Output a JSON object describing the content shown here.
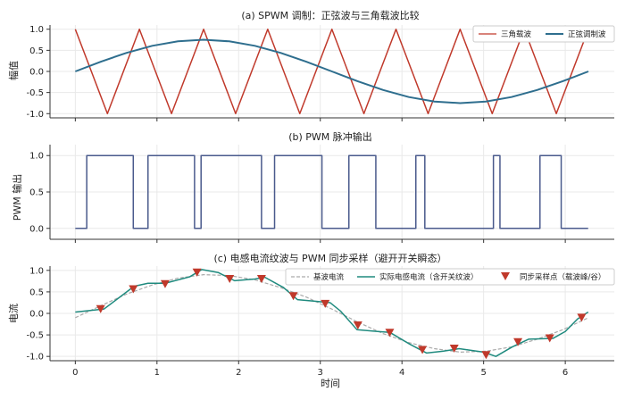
{
  "figure": {
    "xlabel": "时间"
  },
  "chart_data": [
    {
      "type": "line",
      "title": "(a) SPWM 调制：正弦波与三角载波比较",
      "ylabel": "幅值",
      "xlim": [
        -0.31,
        6.6
      ],
      "ylim": [
        -1.1,
        1.1
      ],
      "yticks": [
        -1.0,
        -0.5,
        0.0,
        0.5,
        1.0
      ],
      "ytick_labels": [
        "-1.0",
        "-0.5",
        "0.0",
        "0.5",
        "1.0"
      ],
      "grid": true,
      "legend": "top-right",
      "series": [
        {
          "name": "三角载波",
          "color": "#c0392b",
          "points": [
            [
              0,
              1
            ],
            [
              0.393,
              -1
            ],
            [
              0.785,
              1
            ],
            [
              1.178,
              -1
            ],
            [
              1.571,
              1
            ],
            [
              1.963,
              -1
            ],
            [
              2.356,
              1
            ],
            [
              2.749,
              -1
            ],
            [
              3.142,
              1
            ],
            [
              3.534,
              -1
            ],
            [
              3.927,
              1
            ],
            [
              4.32,
              -1
            ],
            [
              4.712,
              1
            ],
            [
              5.105,
              -1
            ],
            [
              5.498,
              1
            ],
            [
              5.89,
              -1
            ],
            [
              6.283,
              1
            ]
          ]
        },
        {
          "name": "正弦调制波",
          "color": "#2e6e8e",
          "points": [
            [
              0,
              0
            ],
            [
              0.314,
              0.232
            ],
            [
              0.628,
              0.441
            ],
            [
              0.942,
              0.607
            ],
            [
              1.257,
              0.713
            ],
            [
              1.571,
              0.75
            ],
            [
              1.885,
              0.713
            ],
            [
              2.199,
              0.607
            ],
            [
              2.513,
              0.441
            ],
            [
              2.827,
              0.232
            ],
            [
              3.142,
              0
            ],
            [
              3.456,
              -0.232
            ],
            [
              3.77,
              -0.441
            ],
            [
              4.084,
              -0.607
            ],
            [
              4.398,
              -0.713
            ],
            [
              4.712,
              -0.75
            ],
            [
              5.027,
              -0.713
            ],
            [
              5.341,
              -0.607
            ],
            [
              5.655,
              -0.441
            ],
            [
              5.969,
              -0.232
            ],
            [
              6.283,
              0
            ]
          ]
        }
      ]
    },
    {
      "type": "line",
      "title": "(b) PWM 脉冲输出",
      "ylabel": "PWM 输出",
      "xlim": [
        -0.31,
        6.6
      ],
      "ylim": [
        -0.15,
        1.15
      ],
      "yticks": [
        0,
        0.5,
        1.0
      ],
      "ytick_labels": [
        "0.0",
        "0.5",
        "1.0"
      ],
      "grid": true,
      "series": [
        {
          "name": "PWM",
          "color": "#4a5a8c",
          "step": true,
          "points": [
            [
              0,
              0
            ],
            [
              0.14,
              1
            ],
            [
              0.71,
              0
            ],
            [
              0.89,
              1
            ],
            [
              1.46,
              0
            ],
            [
              1.54,
              1
            ],
            [
              2.28,
              0
            ],
            [
              2.44,
              1
            ],
            [
              3.02,
              0
            ],
            [
              3.35,
              1
            ],
            [
              3.68,
              0
            ],
            [
              4.17,
              1
            ],
            [
              4.28,
              0
            ],
            [
              5.12,
              1
            ],
            [
              5.2,
              0
            ],
            [
              5.69,
              1
            ],
            [
              5.95,
              0
            ],
            [
              6.28,
              0
            ]
          ]
        }
      ]
    },
    {
      "type": "line",
      "title": "(c) 电感电流纹波与 PWM 同步采样（避开开关瞬态）",
      "ylabel": "电流",
      "xlim": [
        -0.31,
        6.6
      ],
      "ylim": [
        -1.1,
        1.1
      ],
      "yticks": [
        -1.0,
        -0.5,
        0.0,
        0.5,
        1.0
      ],
      "ytick_labels": [
        "-1.0",
        "-0.5",
        "0.0",
        "0.5",
        "1.0"
      ],
      "xticks": [
        0,
        1,
        2,
        3,
        4,
        5,
        6
      ],
      "xtick_labels": [
        "0",
        "1",
        "2",
        "3",
        "4",
        "5",
        "6"
      ],
      "grid": true,
      "legend": "top-right",
      "series": [
        {
          "name": "基波电流",
          "color": "#aaaaaa",
          "dashed": true,
          "points": [
            [
              0,
              -0.1
            ],
            [
              0.314,
              0.18
            ],
            [
              0.628,
              0.45
            ],
            [
              0.942,
              0.66
            ],
            [
              1.257,
              0.82
            ],
            [
              1.571,
              0.9
            ],
            [
              1.885,
              0.88
            ],
            [
              2.199,
              0.78
            ],
            [
              2.513,
              0.6
            ],
            [
              2.827,
              0.38
            ],
            [
              3.142,
              0.1
            ],
            [
              3.456,
              -0.2
            ],
            [
              3.77,
              -0.47
            ],
            [
              4.084,
              -0.68
            ],
            [
              4.398,
              -0.82
            ],
            [
              4.712,
              -0.9
            ],
            [
              5.027,
              -0.88
            ],
            [
              5.341,
              -0.78
            ],
            [
              5.655,
              -0.6
            ],
            [
              5.969,
              -0.38
            ],
            [
              6.283,
              -0.1
            ]
          ]
        },
        {
          "name": "实际电感电流（含开关纹波）",
          "color": "#1f8a7e",
          "points": [
            [
              0,
              0.03
            ],
            [
              0.35,
              0.1
            ],
            [
              0.72,
              0.63
            ],
            [
              0.89,
              0.7
            ],
            [
              1.1,
              0.7
            ],
            [
              1.4,
              0.85
            ],
            [
              1.55,
              1.02
            ],
            [
              1.75,
              0.95
            ],
            [
              1.95,
              0.76
            ],
            [
              2.2,
              0.8
            ],
            [
              2.32,
              0.84
            ],
            [
              2.55,
              0.6
            ],
            [
              2.72,
              0.32
            ],
            [
              2.95,
              0.28
            ],
            [
              3.12,
              0.25
            ],
            [
              3.25,
              0.05
            ],
            [
              3.45,
              -0.38
            ],
            [
              3.7,
              -0.42
            ],
            [
              3.85,
              -0.44
            ],
            [
              4.1,
              -0.72
            ],
            [
              4.3,
              -0.92
            ],
            [
              4.5,
              -0.88
            ],
            [
              4.7,
              -0.82
            ],
            [
              5.0,
              -0.9
            ],
            [
              5.15,
              -1.0
            ],
            [
              5.35,
              -0.78
            ],
            [
              5.55,
              -0.6
            ],
            [
              5.85,
              -0.58
            ],
            [
              6.0,
              -0.42
            ],
            [
              6.15,
              -0.13
            ],
            [
              6.28,
              0.03
            ]
          ]
        },
        {
          "name": "同步采样点（载波峰/谷）",
          "color": "#c0392b",
          "marker": "triangle-down",
          "scatter": true,
          "points": [
            [
              0.31,
              0.11
            ],
            [
              0.71,
              0.57
            ],
            [
              1.1,
              0.69
            ],
            [
              1.49,
              0.96
            ],
            [
              1.89,
              0.81
            ],
            [
              2.28,
              0.81
            ],
            [
              2.67,
              0.41
            ],
            [
              3.06,
              0.23
            ],
            [
              3.46,
              -0.27
            ],
            [
              3.85,
              -0.44
            ],
            [
              4.25,
              -0.84
            ],
            [
              4.64,
              -0.81
            ],
            [
              5.03,
              -0.96
            ],
            [
              5.42,
              -0.66
            ],
            [
              5.81,
              -0.57
            ],
            [
              6.2,
              -0.09
            ]
          ]
        }
      ]
    }
  ]
}
